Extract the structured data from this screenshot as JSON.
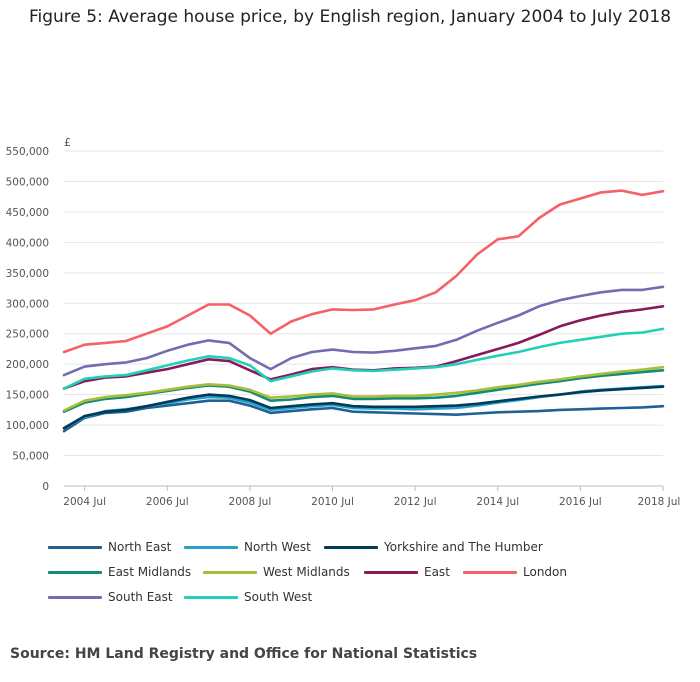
{
  "chart_data": {
    "type": "line",
    "title": "Figure 5: Average house price, by English region, January 2004 to July 2018",
    "ylabel": "£",
    "xlabel": "",
    "ylim": [
      0,
      550000
    ],
    "yticks": [
      "550,000",
      "500,000",
      "450,000",
      "400,000",
      "350,000",
      "300,000",
      "250,000",
      "200,000",
      "150,000",
      "100,000",
      "50,000",
      "0"
    ],
    "ytick_values": [
      550000,
      500000,
      450000,
      400000,
      350000,
      300000,
      250000,
      200000,
      150000,
      100000,
      50000,
      0
    ],
    "xticks": [
      "2004 Jul",
      "2006 Jul",
      "2008 Jul",
      "2010 Jul",
      "2012 Jul",
      "2014 Jul",
      "2016 Jul",
      "2018 Jul"
    ],
    "xtick_values": [
      2004.5,
      2006.5,
      2008.5,
      2010.5,
      2012.5,
      2014.5,
      2016.5,
      2018.5
    ],
    "xlim": [
      2004.0,
      2018.5
    ],
    "grid": "horizontal",
    "legend_position": "bottom",
    "x": [
      2004.0,
      2004.5,
      2005.0,
      2005.5,
      2006.0,
      2006.5,
      2007.0,
      2007.5,
      2008.0,
      2008.5,
      2009.0,
      2009.5,
      2010.0,
      2010.5,
      2011.0,
      2011.5,
      2012.0,
      2012.5,
      2013.0,
      2013.5,
      2014.0,
      2014.5,
      2015.0,
      2015.5,
      2016.0,
      2016.5,
      2017.0,
      2017.5,
      2018.0,
      2018.5
    ],
    "series": [
      {
        "name": "North East",
        "color": "#206095",
        "values": [
          90000,
          112000,
          120000,
          122000,
          128000,
          132000,
          136000,
          140000,
          140000,
          132000,
          120000,
          123000,
          126000,
          128000,
          122000,
          121000,
          120000,
          119000,
          118000,
          117000,
          119000,
          121000,
          122000,
          123000,
          125000,
          126000,
          127000,
          128000,
          129000,
          131000
        ]
      },
      {
        "name": "North West",
        "color": "#27A0CC",
        "values": [
          95000,
          113000,
          123000,
          126000,
          131000,
          136000,
          142000,
          146000,
          145000,
          137000,
          125000,
          128000,
          131000,
          133000,
          128000,
          127000,
          127000,
          126000,
          127000,
          128000,
          132000,
          137000,
          141000,
          146000,
          150000,
          155000,
          158000,
          160000,
          162000,
          164000
        ]
      },
      {
        "name": "Yorkshire and The Humber",
        "color": "#003C57",
        "values": [
          95000,
          115000,
          122000,
          125000,
          131000,
          138000,
          145000,
          150000,
          148000,
          141000,
          128000,
          131000,
          134000,
          136000,
          131000,
          130000,
          130000,
          130000,
          131000,
          132000,
          135000,
          139000,
          143000,
          147000,
          150000,
          154000,
          157000,
          159000,
          161000,
          163000
        ]
      },
      {
        "name": "East Midlands",
        "color": "#118C7B",
        "values": [
          122000,
          137000,
          143000,
          146000,
          151000,
          156000,
          161000,
          165000,
          163000,
          155000,
          140000,
          142000,
          146000,
          148000,
          143000,
          143000,
          144000,
          144000,
          145000,
          148000,
          153000,
          158000,
          163000,
          168000,
          172000,
          177000,
          181000,
          184000,
          187000,
          190000
        ]
      },
      {
        "name": "West Midlands",
        "color": "#A8BD3A",
        "values": [
          124000,
          140000,
          146000,
          149000,
          153000,
          158000,
          163000,
          167000,
          165000,
          158000,
          145000,
          147000,
          150000,
          152000,
          147000,
          147000,
          148000,
          148000,
          150000,
          153000,
          157000,
          162000,
          166000,
          171000,
          175000,
          180000,
          184000,
          188000,
          191000,
          195000
        ]
      },
      {
        "name": "East",
        "color": "#871A5B",
        "values": [
          160000,
          172000,
          178000,
          180000,
          186000,
          192000,
          200000,
          208000,
          205000,
          190000,
          175000,
          183000,
          192000,
          195000,
          191000,
          190000,
          193000,
          194000,
          196000,
          205000,
          215000,
          225000,
          235000,
          248000,
          262000,
          272000,
          280000,
          286000,
          290000,
          295000
        ]
      },
      {
        "name": "London",
        "color": "#F66068",
        "values": [
          220000,
          232000,
          235000,
          238000,
          250000,
          262000,
          280000,
          298000,
          298000,
          280000,
          250000,
          270000,
          282000,
          290000,
          289000,
          290000,
          298000,
          305000,
          318000,
          345000,
          380000,
          405000,
          410000,
          440000,
          462000,
          472000,
          482000,
          485000,
          478000,
          484000
        ]
      },
      {
        "name": "South East",
        "color": "#746CB1",
        "values": [
          182000,
          196000,
          200000,
          203000,
          210000,
          222000,
          232000,
          239000,
          235000,
          210000,
          192000,
          210000,
          220000,
          224000,
          220000,
          219000,
          222000,
          226000,
          230000,
          240000,
          255000,
          268000,
          280000,
          295000,
          305000,
          312000,
          318000,
          322000,
          322000,
          327000
        ]
      },
      {
        "name": "South West",
        "color": "#22D0B6",
        "values": [
          160000,
          176000,
          180000,
          182000,
          190000,
          198000,
          206000,
          213000,
          210000,
          198000,
          172000,
          180000,
          188000,
          193000,
          190000,
          189000,
          191000,
          193000,
          195000,
          200000,
          207000,
          214000,
          220000,
          228000,
          235000,
          240000,
          245000,
          250000,
          252000,
          258000
        ]
      }
    ]
  },
  "legend": {
    "items": [
      "North East",
      "North West",
      "Yorkshire and The Humber",
      "East Midlands",
      "West Midlands",
      "East",
      "London",
      "South East",
      "South West"
    ]
  },
  "source": "Source: HM Land Registry and Office for National Statistics"
}
